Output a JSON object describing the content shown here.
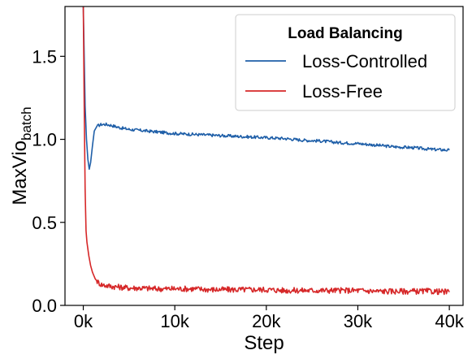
{
  "chart_data": {
    "type": "line",
    "xlabel": "Step",
    "ylabel": "MaxVio",
    "ylabel_subscript": "batch",
    "xlim": [
      -2000,
      41500
    ],
    "ylim": [
      0.0,
      1.8
    ],
    "x_ticks": [
      0,
      10000,
      20000,
      30000,
      40000
    ],
    "x_tick_labels": [
      "0k",
      "10k",
      "20k",
      "30k",
      "40k"
    ],
    "y_ticks": [
      0.0,
      0.5,
      1.0,
      1.5
    ],
    "y_tick_labels": [
      "0.0",
      "0.5",
      "1.0",
      "1.5"
    ],
    "grid": false,
    "legend": {
      "title": "Load Balancing",
      "placement": "top-right"
    },
    "series": [
      {
        "name": "Loss-Controlled",
        "color": "#1f5fa8",
        "x": [
          0,
          100,
          200,
          350,
          500,
          650,
          800,
          1000,
          1200,
          1500,
          2000,
          2500,
          3000,
          4000,
          5000,
          6000,
          7000,
          8000,
          9000,
          10000,
          12000,
          14000,
          16000,
          18000,
          20000,
          22000,
          24000,
          26000,
          28000,
          30000,
          32000,
          34000,
          36000,
          38000,
          40000
        ],
        "y": [
          1.8,
          1.5,
          1.2,
          1.0,
          0.88,
          0.82,
          0.86,
          0.96,
          1.05,
          1.08,
          1.09,
          1.09,
          1.085,
          1.07,
          1.06,
          1.055,
          1.05,
          1.045,
          1.04,
          1.035,
          1.03,
          1.025,
          1.02,
          1.015,
          1.01,
          1.005,
          0.995,
          0.99,
          0.98,
          0.975,
          0.965,
          0.955,
          0.95,
          0.94,
          0.935
        ]
      },
      {
        "name": "Loss-Free",
        "color": "#d62728",
        "x": [
          0,
          100,
          200,
          300,
          400,
          600,
          800,
          1000,
          1300,
          1600,
          2000,
          2500,
          3000,
          4000,
          5000,
          6000,
          8000,
          10000,
          12000,
          14000,
          16000,
          18000,
          20000,
          22000,
          24000,
          26000,
          28000,
          30000,
          32000,
          34000,
          36000,
          38000,
          40000
        ],
        "y": [
          1.8,
          1.2,
          0.7,
          0.45,
          0.38,
          0.3,
          0.24,
          0.2,
          0.16,
          0.14,
          0.125,
          0.12,
          0.115,
          0.11,
          0.105,
          0.105,
          0.1,
          0.1,
          0.1,
          0.095,
          0.095,
          0.095,
          0.095,
          0.09,
          0.09,
          0.09,
          0.09,
          0.09,
          0.085,
          0.085,
          0.085,
          0.085,
          0.08
        ]
      }
    ]
  }
}
